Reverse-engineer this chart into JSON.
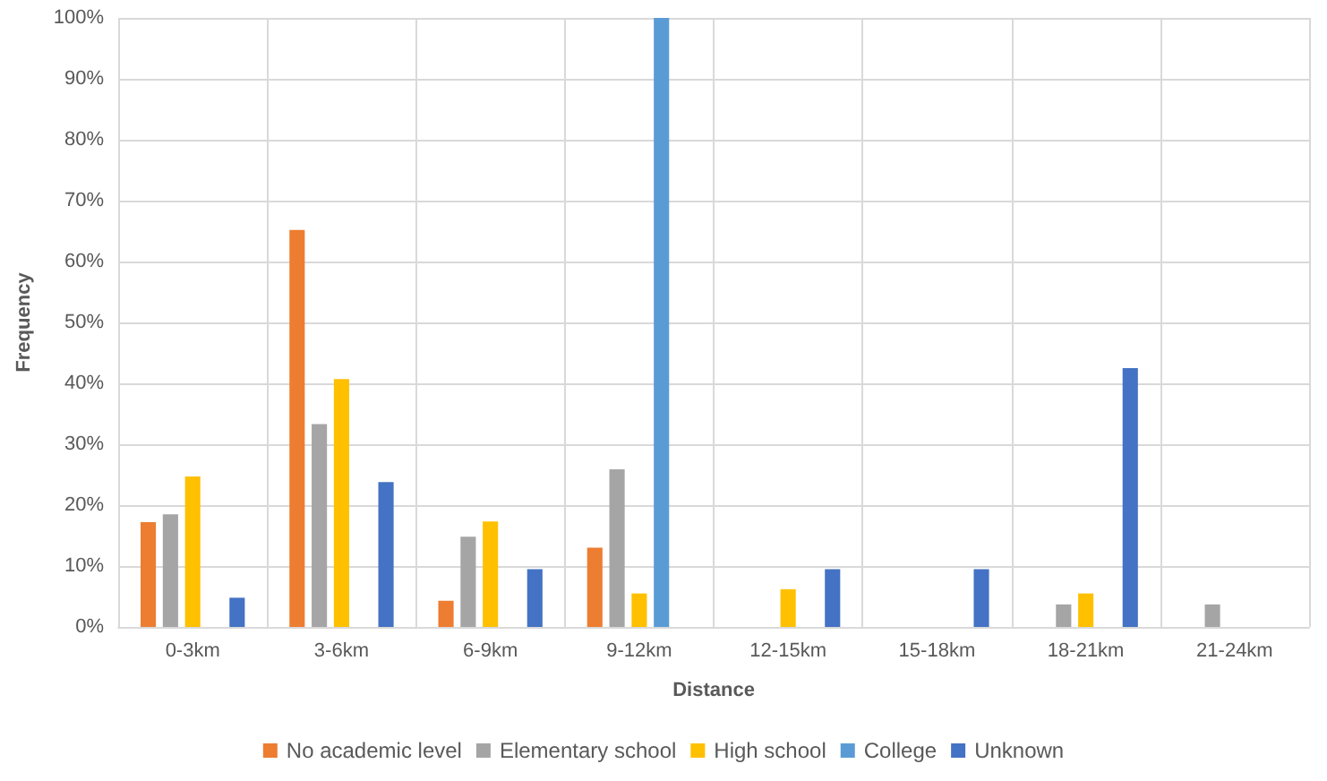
{
  "chart_data": {
    "type": "bar",
    "xlabel": "Distance",
    "ylabel": "Frequency",
    "categories": [
      "0-3km",
      "3-6km",
      "6-9km",
      "9-12km",
      "12-15km",
      "15-18km",
      "18-21km",
      "21-24km"
    ],
    "series": [
      {
        "name": "No academic level",
        "color": "#ed7d31",
        "values": [
          17.2,
          65.2,
          4.3,
          13,
          null,
          null,
          null,
          null
        ]
      },
      {
        "name": "Elementary school",
        "color": "#a5a5a5",
        "values": [
          18.5,
          33.3,
          14.8,
          25.9,
          null,
          null,
          3.7,
          3.7
        ]
      },
      {
        "name": "High school",
        "color": "#ffc000",
        "values": [
          24.7,
          40.7,
          17.3,
          5.5,
          6.2,
          null,
          5.5,
          null
        ]
      },
      {
        "name": "College",
        "color": "#5b9bd5",
        "values": [
          null,
          null,
          null,
          100,
          null,
          null,
          null,
          null
        ]
      },
      {
        "name": "Unknown",
        "color": "#4472c4",
        "values": [
          4.8,
          23.8,
          9.5,
          null,
          9.5,
          9.5,
          42.5,
          null
        ]
      }
    ],
    "ylim": [
      0,
      100
    ],
    "yticks": [
      {
        "value": 0,
        "label": "0%"
      },
      {
        "value": 10,
        "label": "10%"
      },
      {
        "value": 20,
        "label": "20%"
      },
      {
        "value": 30,
        "label": "30%"
      },
      {
        "value": 40,
        "label": "40%"
      },
      {
        "value": 50,
        "label": "50%"
      },
      {
        "value": 60,
        "label": "60%"
      },
      {
        "value": 70,
        "label": "70%"
      },
      {
        "value": 80,
        "label": "80%"
      },
      {
        "value": 90,
        "label": "90%"
      },
      {
        "value": 100,
        "label": "100%"
      }
    ],
    "grid": true,
    "legend": "bottom"
  }
}
